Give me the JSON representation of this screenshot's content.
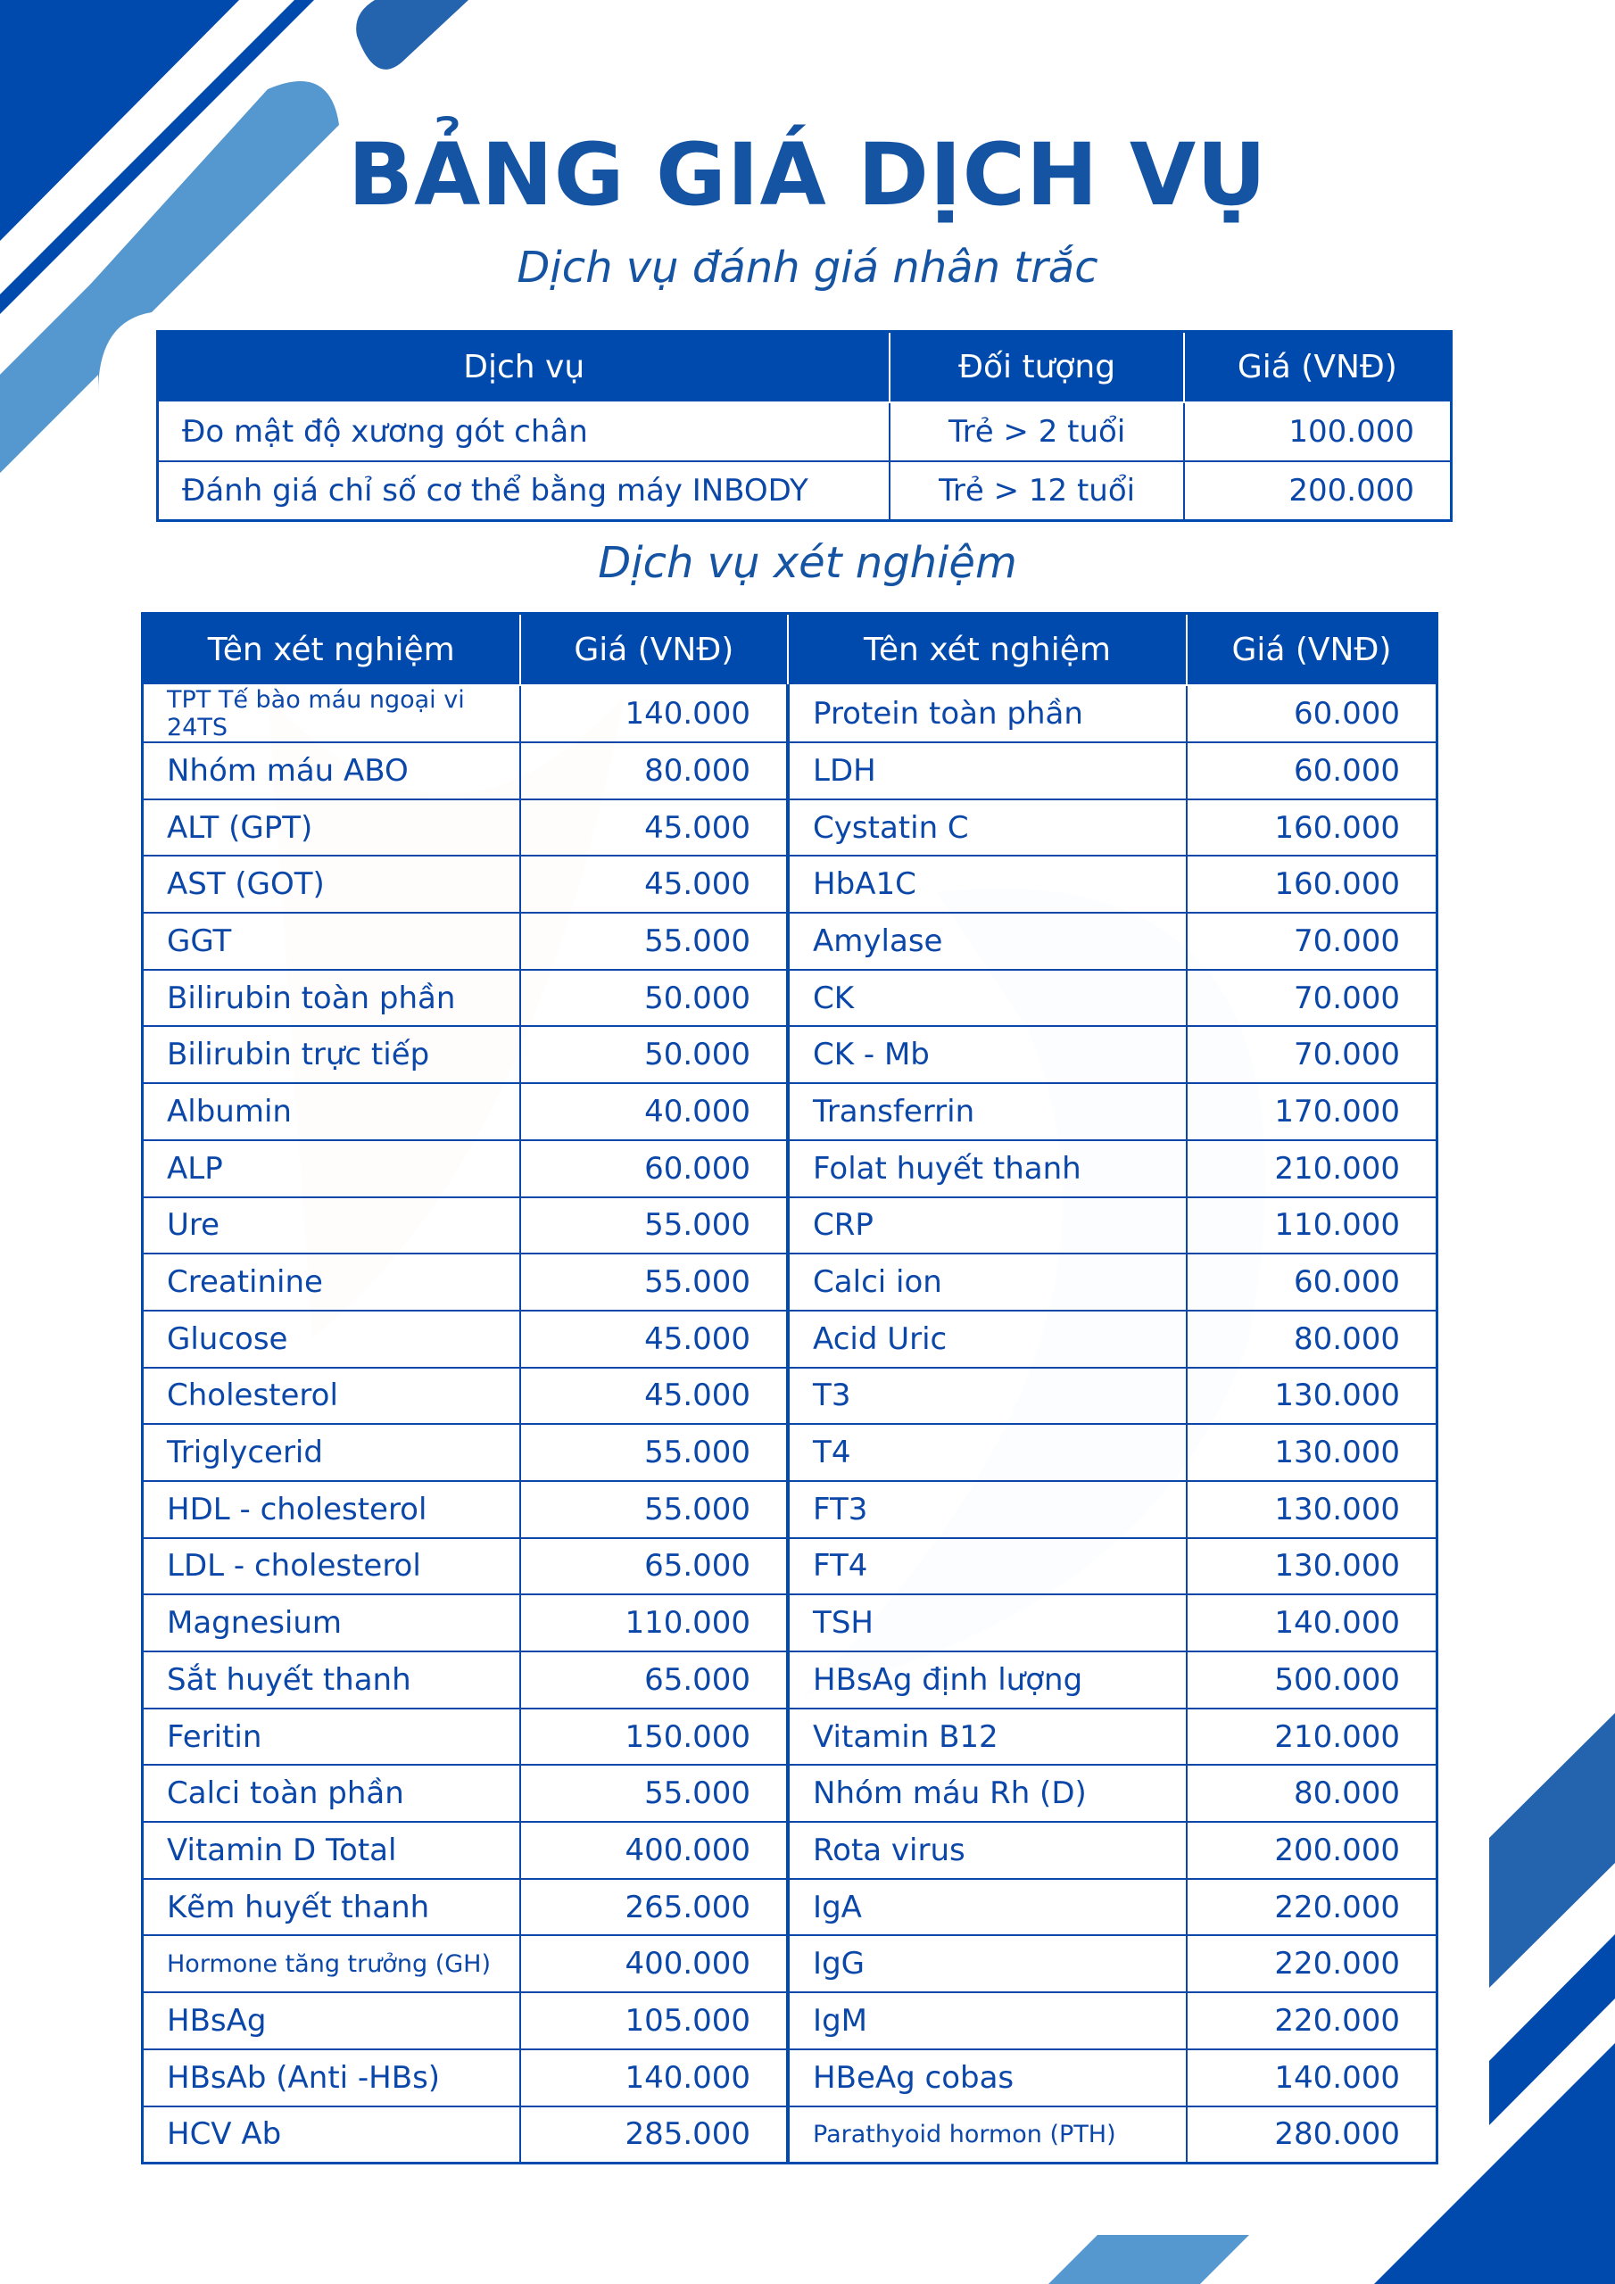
{
  "title": "BẢNG GIÁ DỊCH VỤ",
  "section1": {
    "subtitle": "Dịch vụ đánh giá nhân trắc",
    "headers": [
      "Dịch vụ",
      "Đối tượng",
      "Giá (VNĐ)"
    ],
    "rows": [
      [
        "Đo mật độ xương gót chân",
        "Trẻ > 2 tuổi",
        "100.000"
      ],
      [
        "Đánh giá chỉ số cơ thể bằng máy INBODY",
        "Trẻ > 12 tuổi",
        "200.000"
      ]
    ]
  },
  "section2": {
    "subtitle": "Dịch vụ xét nghiệm",
    "headers": [
      "Tên xét nghiệm",
      "Giá (VNĐ)",
      "Tên xét nghiệm",
      "Giá (VNĐ)"
    ],
    "rows": [
      [
        "TPT Tế bào máu ngoại vi 24TS",
        "140.000",
        "Protein toàn phần",
        "60.000"
      ],
      [
        "Nhóm máu ABO",
        "80.000",
        "LDH",
        "60.000"
      ],
      [
        "ALT (GPT)",
        "45.000",
        "Cystatin C",
        "160.000"
      ],
      [
        "AST (GOT)",
        "45.000",
        "HbA1C",
        "160.000"
      ],
      [
        "GGT",
        "55.000",
        "Amylase",
        "70.000"
      ],
      [
        "Bilirubin toàn phần",
        "50.000",
        "CK",
        "70.000"
      ],
      [
        "Bilirubin trực tiếp",
        "50.000",
        "CK - Mb",
        "70.000"
      ],
      [
        "Albumin",
        "40.000",
        "Transferrin",
        "170.000"
      ],
      [
        "ALP",
        "60.000",
        "Folat huyết thanh",
        "210.000"
      ],
      [
        "Ure",
        "55.000",
        "CRP",
        "110.000"
      ],
      [
        "Creatinine",
        "55.000",
        "Calci ion",
        "60.000"
      ],
      [
        "Glucose",
        "45.000",
        "Acid Uric",
        "80.000"
      ],
      [
        "Cholesterol",
        "45.000",
        "T3",
        "130.000"
      ],
      [
        "Triglycerid",
        "55.000",
        "T4",
        "130.000"
      ],
      [
        "HDL - cholesterol",
        "55.000",
        "FT3",
        "130.000"
      ],
      [
        "LDL - cholesterol",
        "65.000",
        "FT4",
        "130.000"
      ],
      [
        "Magnesium",
        "110.000",
        "TSH",
        "140.000"
      ],
      [
        "Sắt huyết thanh",
        "65.000",
        "HBsAg định lượng",
        "500.000"
      ],
      [
        "Feritin",
        "150.000",
        "Vitamin B12",
        "210.000"
      ],
      [
        "Calci toàn phần",
        "55.000",
        "Nhóm máu Rh (D)",
        "80.000"
      ],
      [
        "Vitamin D Total",
        "400.000",
        "Rota virus",
        "200.000"
      ],
      [
        "Kẽm huyết thanh",
        "265.000",
        "IgA",
        "220.000"
      ],
      [
        "Hormone tăng trưởng (GH)",
        "400.000",
        "IgG",
        "220.000"
      ],
      [
        "HBsAg",
        "105.000",
        "IgM",
        "220.000"
      ],
      [
        "HBsAb (Anti -HBs)",
        "140.000",
        "HBeAg cobas",
        "140.000"
      ],
      [
        "HCV Ab",
        "285.000",
        "Parathyoid hormon (PTH)",
        "280.000"
      ]
    ]
  },
  "colors": {
    "primary": "#004aad",
    "light": "#5597cf",
    "mid": "#2463ad"
  }
}
